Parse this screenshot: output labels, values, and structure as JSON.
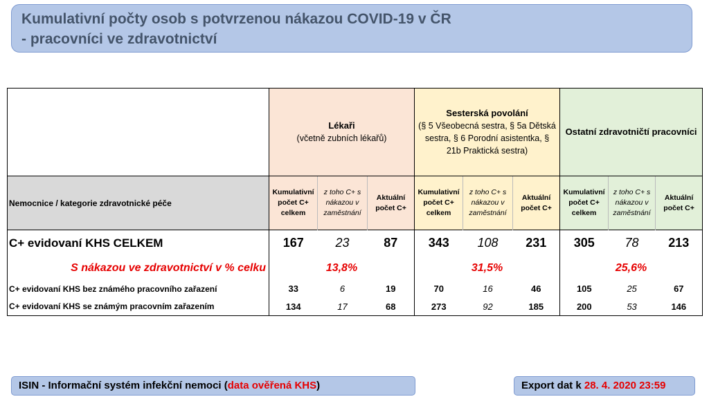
{
  "title": {
    "line1": "Kumulativní počty osob s potvrzenou nákazou COVID-19 v ČR",
    "line2": "- pracovníci ve zdravotnictví"
  },
  "table": {
    "category_header": "Nemocnice / kategorie zdravotnické péče",
    "groups": [
      {
        "title": "Lékaři",
        "subtitle": "(včetně zubních lékařů)"
      },
      {
        "title": "Sesterská povolání",
        "subtitle": "(§ 5 Všeobecná sestra, § 5a Dětská sestra, § 6 Porodní asistentka, § 21b Praktická sestra)"
      },
      {
        "title": "Ostatní zdravotničtí pracovníci",
        "subtitle": ""
      }
    ],
    "subheaders": {
      "cumulative": "Kumulativní počet C+ celkem",
      "workplace": "z toho C+ s nákazou v zaměstnání",
      "active": "Aktuální počet C+"
    },
    "rows": {
      "total": {
        "label": "C+ evidovaní KHS CELKEM",
        "values": [
          {
            "cumulative": "167",
            "workplace": "23",
            "active": "87"
          },
          {
            "cumulative": "343",
            "workplace": "108",
            "active": "231"
          },
          {
            "cumulative": "305",
            "workplace": "78",
            "active": "213"
          }
        ]
      },
      "percent": {
        "label": "S nákazou ve zdravotnictví v % celku",
        "values": [
          "13,8%",
          "31,5%",
          "25,6%"
        ]
      },
      "unknown": {
        "label": "C+ evidovaní KHS bez známého pracovního zařazení",
        "values": [
          {
            "cumulative": "33",
            "workplace": "6",
            "active": "19"
          },
          {
            "cumulative": "70",
            "workplace": "16",
            "active": "46"
          },
          {
            "cumulative": "105",
            "workplace": "25",
            "active": "67"
          }
        ]
      },
      "known": {
        "label": "C+ evidovaní KHS se známým pracovním zařazením",
        "values": [
          {
            "cumulative": "134",
            "workplace": "17",
            "active": "68"
          },
          {
            "cumulative": "273",
            "workplace": "92",
            "active": "185"
          },
          {
            "cumulative": "200",
            "workplace": "53",
            "active": "146"
          }
        ]
      }
    }
  },
  "footer": {
    "source_prefix": "ISIN - Informační systém infekční nemoci (",
    "source_highlight": "data ověřená KHS",
    "source_suffix": ")",
    "export_label": "Export dat k ",
    "export_date": "28. 4. 2020 23:59"
  },
  "colors": {
    "title_bg": "#b4c7e7",
    "title_text": "#44546a",
    "lekari_bg": "#fbe5d6",
    "sestry_bg": "#fff2cc",
    "ostatni_bg": "#e2f0d9",
    "header_gray": "#d9d9d9",
    "highlight_red": "#e60000"
  }
}
